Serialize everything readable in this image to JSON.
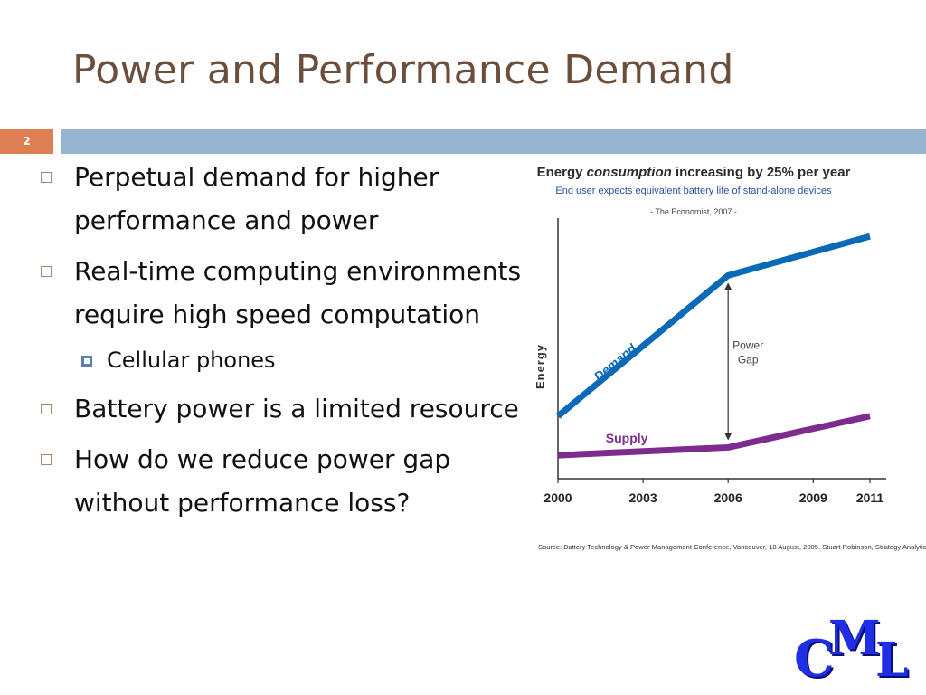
{
  "slide": {
    "title": "Power and Performance Demand",
    "slide_number": "2",
    "bullets": [
      {
        "text": "Perpetual demand for higher performance and power"
      },
      {
        "text": "Real-time computing environments require high speed computation"
      },
      {
        "text": "Cellular phones"
      },
      {
        "text": "Battery power is a limited resource"
      },
      {
        "text": "How do we reduce power gap without performance loss?"
      }
    ]
  },
  "chart_header": {
    "title_pre": "Energy ",
    "title_em": "consumption",
    "title_post": " increasing by 25% per year",
    "subtitle": "End user expects equivalent battery life of stand-alone devices",
    "quote": "- The Economist, 2007 -"
  },
  "chart_data": {
    "type": "line",
    "x": [
      2000,
      2003,
      2006,
      2009,
      2011
    ],
    "ylabel": "Energy",
    "y_unit": "relative (axis unlabeled)",
    "ylim": [
      0,
      100
    ],
    "series": [
      {
        "name": "Demand",
        "color": "#0a6ab8",
        "points": [
          [
            2000,
            24
          ],
          [
            2006,
            78
          ],
          [
            2011,
            93
          ]
        ]
      },
      {
        "name": "Supply",
        "color": "#7d2c8e",
        "points": [
          [
            2000,
            9
          ],
          [
            2006,
            12
          ],
          [
            2011,
            24
          ]
        ]
      }
    ],
    "annotation": {
      "line1": "Power",
      "line2": "Gap",
      "x": 2006
    },
    "grid": false,
    "legend": "inline labels",
    "source": "Source: Battery Technology & Power Management Conference, Vancouver, 18 August, 2005. Stuart Robinson, Strategy Analytics, Ltd."
  },
  "logo": {
    "c": "C",
    "m": "M",
    "l": "L",
    "color": "#1f2fe8"
  }
}
